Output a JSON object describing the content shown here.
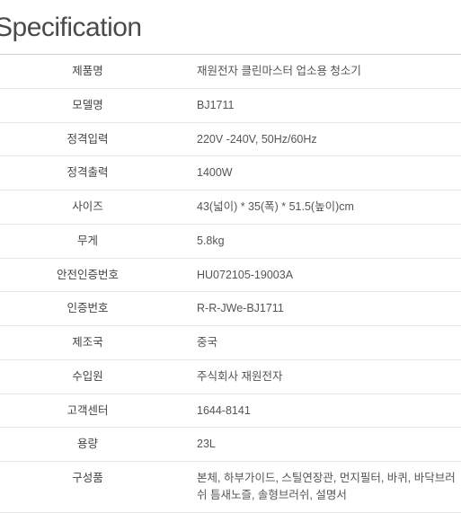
{
  "title": "Specification",
  "rows": [
    {
      "label": "제품명",
      "value": "재원전자 클린마스터 업소용 청소기"
    },
    {
      "label": "모델명",
      "value": "BJ1711"
    },
    {
      "label": "정격입력",
      "value": "220V -240V, 50Hz/60Hz"
    },
    {
      "label": "정격출력",
      "value": "1400W"
    },
    {
      "label": "사이즈",
      "value": "43(넓이) * 35(폭) * 51.5(높이)cm"
    },
    {
      "label": "무게",
      "value": "5.8kg"
    },
    {
      "label": "안전인증번호",
      "value": "HU072105-19003A"
    },
    {
      "label": "인증번호",
      "value": "R-R-JWe-BJ1711"
    },
    {
      "label": "제조국",
      "value": "중국"
    },
    {
      "label": "수입원",
      "value": "주식회사 재원전자"
    },
    {
      "label": "고객센터",
      "value": "1644-8141"
    },
    {
      "label": "용량",
      "value": "23L"
    },
    {
      "label": "구성품",
      "value": "본체, 하부가이드, 스틸연장관, 먼지필터, 바퀴, 바닥브러쉬 틈새노즐, 솔형브러쉬, 설명서"
    }
  ],
  "style": {
    "title_fontsize": 30,
    "title_color": "#4a4a4a",
    "body_fontsize": 12.5,
    "label_color": "#444444",
    "value_color": "#555555",
    "border_top_color": "#cfcfcf",
    "row_border_color": "#e6e6e6",
    "label_col_width": 195,
    "background_color": "#ffffff"
  }
}
